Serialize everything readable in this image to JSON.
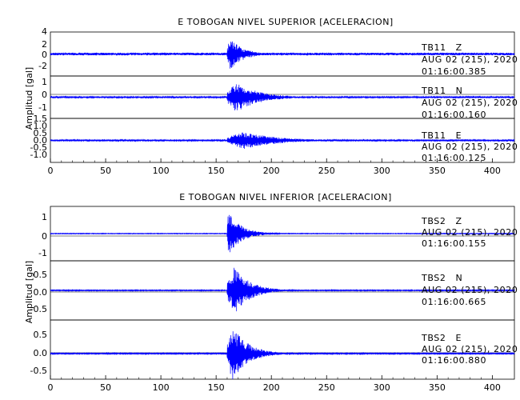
{
  "chart_data": [
    {
      "type": "line",
      "title": "E TOBOGAN NIVEL SUPERIOR [ACELERACION]",
      "ylabel": "Amplitud [gal]",
      "xlim": [
        0,
        420
      ],
      "xticks": [
        "0",
        "50",
        "100",
        "150",
        "200",
        "250",
        "300",
        "350",
        "400"
      ],
      "series": [
        {
          "station": "TB11",
          "component": "Z",
          "date": "AUG 02 (215), 2020",
          "time": "01:16:00.385",
          "ylim": [
            -4,
            4
          ],
          "yticks": [
            "4",
            "2",
            "0",
            "-2"
          ],
          "onset_s": 160,
          "peak_gal": 3.0,
          "coda_peak_s": 162,
          "coda_decay_s": 12,
          "noise_gal": 0.25,
          "color": "#0000ff"
        },
        {
          "station": "TB11",
          "component": "N",
          "date": "AUG 02 (215), 2020",
          "time": "01:16:00.160",
          "ylim": [
            -1.5,
            1.5
          ],
          "yticks": [
            "1",
            "0",
            "-1"
          ],
          "onset_s": 160,
          "peak_gal": 1.1,
          "coda_peak_s": 168,
          "coda_decay_s": 20,
          "noise_gal": 0.05,
          "color": "#0000ff"
        },
        {
          "station": "TB11",
          "component": "E",
          "date": "AUG 02 (215), 2020",
          "time": "01:16:00.125",
          "ylim": [
            -1.5,
            1.5
          ],
          "yticks": [
            "1.5",
            "1.0",
            "0.5",
            "0.0",
            "-0.5",
            "-1.0"
          ],
          "onset_s": 160,
          "peak_gal": 0.6,
          "coda_peak_s": 175,
          "coda_decay_s": 30,
          "noise_gal": 0.05,
          "color": "#0000ff"
        }
      ]
    },
    {
      "type": "line",
      "title": "E TOBOGAN NIVEL INFERIOR [ACELERACION]",
      "ylabel": "Amplitud [gal]",
      "xlim": [
        0,
        420
      ],
      "xticks": [
        "0",
        "50",
        "100",
        "150",
        "200",
        "250",
        "300",
        "350",
        "400"
      ],
      "series": [
        {
          "station": "TBS2",
          "component": "Z",
          "date": "AUG 02 (215), 2020",
          "time": "01:16:00.155",
          "ylim": [
            -1.5,
            1.5
          ],
          "yticks": [
            "1",
            "0",
            "-1"
          ],
          "onset_s": 160,
          "peak_gal": 1.2,
          "coda_peak_s": 161,
          "coda_decay_s": 12,
          "noise_gal": 0.02,
          "color": "#0000ff"
        },
        {
          "station": "TBS2",
          "component": "N",
          "date": "AUG 02 (215), 2020",
          "time": "01:16:00.665",
          "ylim": [
            -0.85,
            0.85
          ],
          "yticks": [
            "0.5",
            "0.0",
            "-0.5"
          ],
          "onset_s": 160,
          "peak_gal": 0.7,
          "coda_peak_s": 167,
          "coda_decay_s": 14,
          "noise_gal": 0.015,
          "color": "#0000ff"
        },
        {
          "station": "TBS2",
          "component": "E",
          "date": "AUG 02 (215), 2020",
          "time": "01:16:00.880",
          "ylim": [
            -0.65,
            0.85
          ],
          "yticks": [
            "0.5",
            "0.0",
            "-0.5"
          ],
          "onset_s": 160,
          "peak_gal": 0.7,
          "coda_peak_s": 165,
          "coda_decay_s": 14,
          "noise_gal": 0.015,
          "color": "#0000ff"
        }
      ]
    }
  ]
}
